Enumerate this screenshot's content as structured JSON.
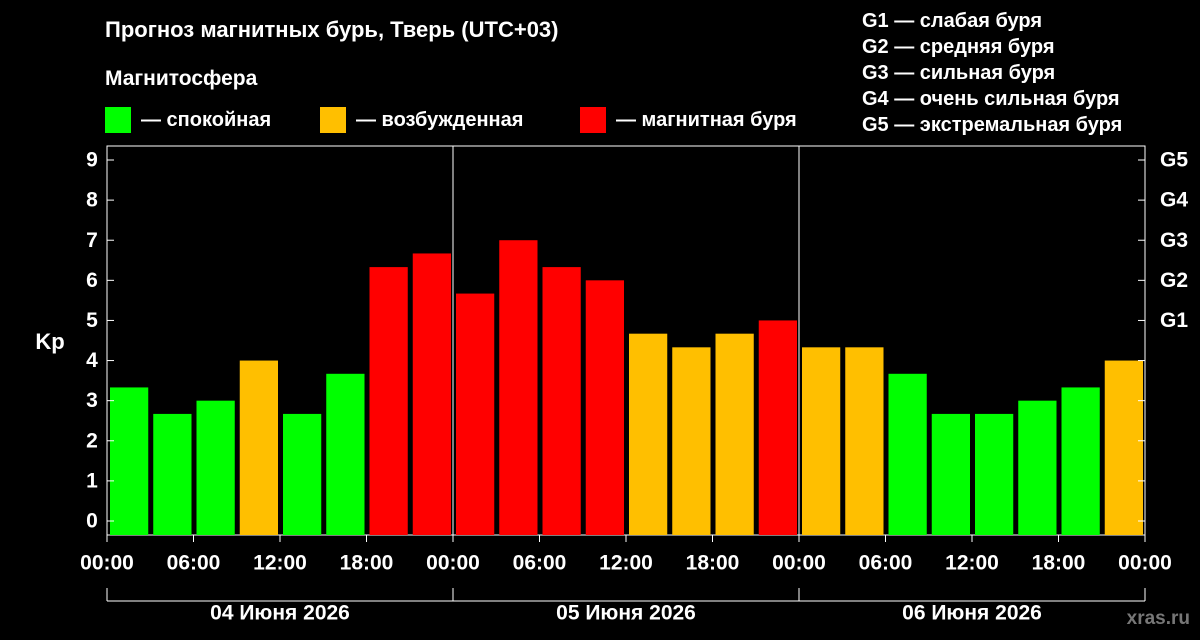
{
  "title": "Прогноз магнитных бурь, Тверь (UTC+03)",
  "legend": {
    "header": "Магнитосфера",
    "items": [
      {
        "label": "— спокойная",
        "color": "#00ff00"
      },
      {
        "label": "— возбужденная",
        "color": "#ffbf00"
      },
      {
        "label": "— магнитная буря",
        "color": "#ff0000"
      }
    ]
  },
  "storm_levels": [
    "G1 — слабая буря",
    "G2 — средняя буря",
    "G3 — сильная буря",
    "G4 — очень сильная буря",
    "G5 — экстремальная буря"
  ],
  "watermark": "xras.ru",
  "chart_data": {
    "type": "bar",
    "ylabel": "Kp",
    "ylim": [
      0,
      9
    ],
    "yticks": [
      "0",
      "1",
      "2",
      "3",
      "4",
      "5",
      "6",
      "7",
      "8",
      "9"
    ],
    "right_axis": {
      "labels": [
        "G1",
        "G2",
        "G3",
        "G4",
        "G5"
      ],
      "kp_values": [
        5,
        6,
        7,
        8,
        9
      ]
    },
    "xtick_labels": [
      "00:00",
      "06:00",
      "12:00",
      "18:00",
      "00:00",
      "06:00",
      "12:00",
      "18:00",
      "00:00",
      "06:00",
      "12:00",
      "18:00",
      "00:00"
    ],
    "days": [
      "04 Июня 2026",
      "05 Июня 2026",
      "06 Июня 2026"
    ],
    "bar_interval_hours": 3,
    "values": [
      3.33,
      2.67,
      3.0,
      4.0,
      2.67,
      3.67,
      6.33,
      6.67,
      5.67,
      7.0,
      6.33,
      6.0,
      4.67,
      4.33,
      4.67,
      5.0,
      4.33,
      4.33,
      3.67,
      2.67,
      2.67,
      3.0,
      3.33,
      4.0
    ],
    "colors": {
      "quiet": "#00ff00",
      "active": "#ffbf00",
      "storm": "#ff0000"
    },
    "categories": [
      "quiet",
      "quiet",
      "quiet",
      "active",
      "quiet",
      "quiet",
      "storm",
      "storm",
      "storm",
      "storm",
      "storm",
      "storm",
      "active",
      "active",
      "active",
      "storm",
      "active",
      "active",
      "quiet",
      "quiet",
      "quiet",
      "quiet",
      "quiet",
      "active"
    ],
    "grid": false
  }
}
